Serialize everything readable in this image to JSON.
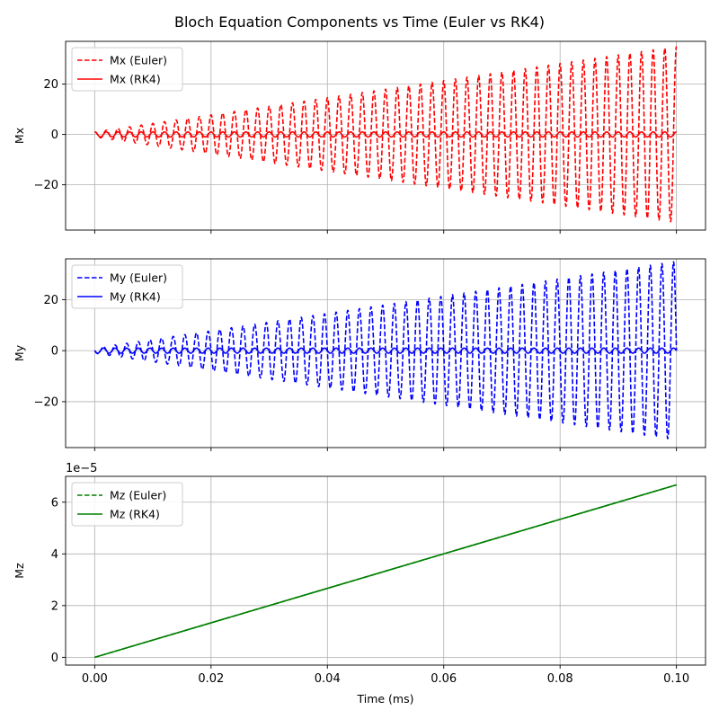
{
  "figure": {
    "title": "Bloch Equation Components vs Time (Euler vs RK4)"
  },
  "chart_data": [
    {
      "type": "line",
      "ylabel": "Mx",
      "xlabel": "",
      "xlim": [
        -0.005,
        0.105
      ],
      "ylim": [
        -38,
        37
      ],
      "xticks": [
        0.0,
        0.02,
        0.04,
        0.06,
        0.08,
        0.1
      ],
      "xtick_labels": [],
      "yticks": [
        -20,
        0,
        20
      ],
      "ytick_labels": [
        "−20",
        "0",
        "20"
      ],
      "grid": true,
      "legend_position": "upper-left",
      "series": [
        {
          "name": "Mx (Euler)",
          "color": "#ff0000",
          "style": "dashed",
          "model": "oscillation",
          "phase": "cos",
          "cycles": 50,
          "amplitude_start": 1.0,
          "amplitude_end": 35.0
        },
        {
          "name": "Mx (RK4)",
          "color": "#ff0000",
          "style": "solid",
          "model": "oscillation",
          "phase": "cos",
          "cycles": 50,
          "amplitude_start": 1.0,
          "amplitude_end": 1.0
        }
      ]
    },
    {
      "type": "line",
      "ylabel": "My",
      "xlabel": "",
      "xlim": [
        -0.005,
        0.105
      ],
      "ylim": [
        -38,
        36
      ],
      "xticks": [
        0.0,
        0.02,
        0.04,
        0.06,
        0.08,
        0.1
      ],
      "xtick_labels": [],
      "yticks": [
        -20,
        0,
        20
      ],
      "ytick_labels": [
        "−20",
        "0",
        "20"
      ],
      "grid": true,
      "legend_position": "upper-left",
      "series": [
        {
          "name": "My (Euler)",
          "color": "#0000ff",
          "style": "dashed",
          "model": "oscillation",
          "phase": "-sin",
          "cycles": 50,
          "amplitude_start": 1.0,
          "amplitude_end": 35.0
        },
        {
          "name": "My (RK4)",
          "color": "#0000ff",
          "style": "solid",
          "model": "oscillation",
          "phase": "-sin",
          "cycles": 50,
          "amplitude_start": 1.0,
          "amplitude_end": 1.0
        }
      ]
    },
    {
      "type": "line",
      "ylabel": "Mz",
      "xlabel": "Time (ms)",
      "xlim": [
        -0.005,
        0.105
      ],
      "ylim": [
        -3e-06,
        7e-05
      ],
      "scale_label": "1e−5",
      "xticks": [
        0.0,
        0.02,
        0.04,
        0.06,
        0.08,
        0.1
      ],
      "xtick_labels": [
        "0.00",
        "0.02",
        "0.04",
        "0.06",
        "0.08",
        "0.10"
      ],
      "yticks": [
        0,
        2e-05,
        4e-05,
        6e-05
      ],
      "ytick_labels": [
        "0",
        "2",
        "4",
        "6"
      ],
      "grid": true,
      "legend_position": "upper-left",
      "series": [
        {
          "name": "Mz (Euler)",
          "color": "#008000",
          "style": "dashed",
          "model": "linear",
          "y_start": 0,
          "y_end": 6.67e-05
        },
        {
          "name": "Mz (RK4)",
          "color": "#008000",
          "style": "solid",
          "model": "linear",
          "y_start": 0,
          "y_end": 6.67e-05
        }
      ]
    }
  ]
}
